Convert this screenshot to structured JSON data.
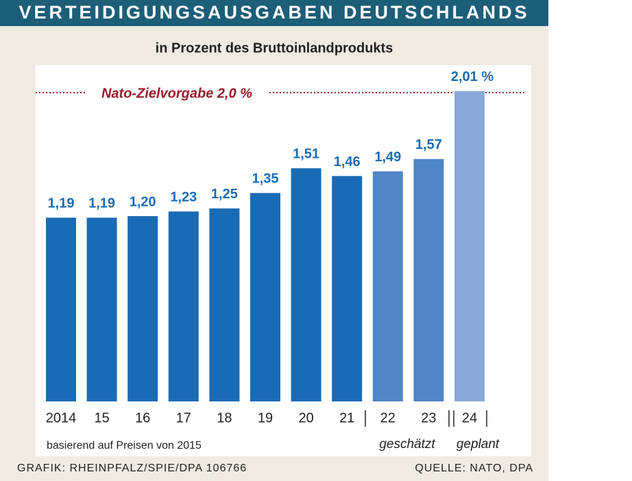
{
  "chart_data": {
    "type": "bar",
    "title": "VERTEIDIGUNGSAUSGABEN DEUTSCHLANDS",
    "subtitle": "in Prozent des Bruttoinlandprodukts",
    "categories": [
      "2014",
      "15",
      "16",
      "17",
      "18",
      "19",
      "20",
      "21",
      "22",
      "23",
      "24"
    ],
    "values": [
      1.19,
      1.19,
      1.2,
      1.23,
      1.25,
      1.35,
      1.51,
      1.46,
      1.49,
      1.57,
      2.01
    ],
    "value_labels": [
      "1,19",
      "1,19",
      "1,20",
      "1,23",
      "1,25",
      "1,35",
      "1,51",
      "1,46",
      "1,49",
      "1,57",
      "2,01 %"
    ],
    "colors": [
      "#1a6bb5",
      "#1a6bb5",
      "#1a6bb5",
      "#1a6bb5",
      "#1a6bb5",
      "#1a6bb5",
      "#1a6bb5",
      "#1a6bb5",
      "#4f86c6",
      "#4f86c6",
      "#8aa9d9"
    ],
    "target": {
      "value": 2.0,
      "label": "Nato-Zielvorgabe 2,0 %"
    },
    "annotations": {
      "note": "basierend auf Preisen von 2015",
      "estimated": "geschätzt",
      "planned": "geplant"
    },
    "footer": {
      "credit": "GRAFIK: RHEINPFALZ/SPIE/DPA 106766",
      "source": "QUELLE: NATO, DPA"
    }
  }
}
